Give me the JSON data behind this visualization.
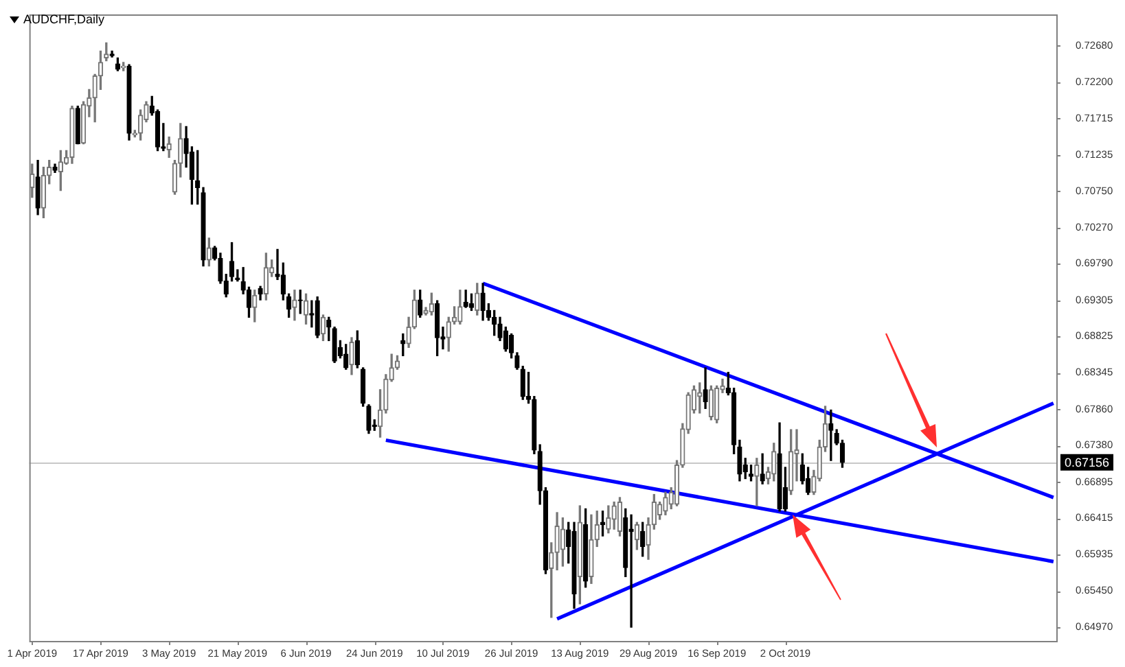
{
  "chart_data": {
    "type": "candlestick",
    "title": "AUDCHF,Daily",
    "categories": [
      "1 Apr 2019",
      null,
      null,
      null,
      null,
      null,
      null,
      null,
      null,
      null,
      null,
      null,
      "17 Apr 2019",
      null,
      null,
      null,
      null,
      null,
      null,
      null,
      null,
      null,
      null,
      null,
      "3 May 2019",
      null,
      null,
      null,
      null,
      null,
      null,
      null,
      null,
      null,
      null,
      null,
      "21 May 2019",
      null,
      null,
      null,
      null,
      null,
      null,
      null,
      null,
      null,
      null,
      null,
      "6 Jun 2019",
      null,
      null,
      null,
      null,
      null,
      null,
      null,
      null,
      null,
      null,
      null,
      "24 Jun 2019",
      null,
      null,
      null,
      null,
      null,
      null,
      null,
      null,
      null,
      null,
      null,
      "10 Jul 2019",
      null,
      null,
      null,
      null,
      null,
      null,
      null,
      null,
      null,
      null,
      null,
      "26 Jul 2019",
      null,
      null,
      null,
      null,
      null,
      null,
      null,
      null,
      null,
      null,
      null,
      "13 Aug 2019",
      null,
      null,
      null,
      null,
      null,
      null,
      null,
      null,
      null,
      null,
      null,
      "29 Aug 2019",
      null,
      null,
      null,
      null,
      null,
      null,
      null,
      null,
      null,
      null,
      null,
      "16 Sep 2019",
      null,
      null,
      null,
      null,
      null,
      null,
      null,
      null,
      null,
      null,
      null,
      "2 Oct 2019",
      null,
      null,
      null,
      null,
      null,
      null,
      null,
      null,
      null,
      null,
      null,
      null,
      null,
      null,
      null,
      null,
      null,
      null,
      null,
      null,
      null,
      null,
      null,
      null,
      null,
      null,
      null,
      null,
      null,
      null,
      null,
      null,
      null,
      null,
      null,
      null,
      null,
      null,
      null,
      null,
      null,
      null,
      null,
      null,
      null,
      null,
      null
    ],
    "ohlc": [
      [
        0.708,
        0.7111,
        0.7067,
        0.7098
      ],
      [
        0.7094,
        0.7116,
        0.7044,
        0.7053
      ],
      [
        0.7053,
        0.7107,
        0.704,
        0.7096
      ],
      [
        0.7096,
        0.7116,
        0.7085,
        0.7107
      ],
      [
        0.7107,
        0.7111,
        0.71,
        0.7103
      ],
      [
        0.7101,
        0.7129,
        0.7076,
        0.7114
      ],
      [
        0.7112,
        0.7129,
        0.7111,
        0.712
      ],
      [
        0.712,
        0.7188,
        0.7112,
        0.7185
      ],
      [
        0.7185,
        0.7188,
        0.7138,
        0.7138
      ],
      [
        0.7139,
        0.7194,
        0.7138,
        0.719
      ],
      [
        0.7188,
        0.721,
        0.7174,
        0.7199
      ],
      [
        0.7199,
        0.723,
        0.7167,
        0.7228
      ],
      [
        0.7228,
        0.7261,
        0.721,
        0.7246
      ],
      [
        0.7252,
        0.7272,
        0.7248,
        0.7257
      ],
      [
        0.7257,
        0.7261,
        0.7253,
        0.7255
      ],
      [
        0.7244,
        0.7252,
        0.7235,
        0.7237
      ],
      [
        0.7239,
        0.7246,
        0.7235,
        0.7241
      ],
      [
        0.7241,
        0.7243,
        0.7143,
        0.7152
      ],
      [
        0.715,
        0.7156,
        0.7147,
        0.7152
      ],
      [
        0.7152,
        0.7183,
        0.7143,
        0.7176
      ],
      [
        0.717,
        0.7194,
        0.7167,
        0.719
      ],
      [
        0.7188,
        0.7201,
        0.7176,
        0.7179
      ],
      [
        0.7181,
        0.7183,
        0.7129,
        0.7134
      ],
      [
        0.7134,
        0.7165,
        0.7129,
        0.7132
      ],
      [
        0.713,
        0.7147,
        0.712,
        0.7138
      ],
      [
        0.7074,
        0.7116,
        0.7071,
        0.7112
      ],
      [
        0.7112,
        0.7165,
        0.7094,
        0.7145
      ],
      [
        0.7145,
        0.7161,
        0.7107,
        0.7125
      ],
      [
        0.7127,
        0.7134,
        0.7058,
        0.7091
      ],
      [
        0.7089,
        0.7129,
        0.7058,
        0.708
      ],
      [
        0.7073,
        0.708,
        0.6976,
        0.6984
      ],
      [
        0.6984,
        0.7013,
        0.6976,
        0.7
      ],
      [
        0.7,
        0.7002,
        0.6984,
        0.6986
      ],
      [
        0.6986,
        0.6993,
        0.6953,
        0.6956
      ],
      [
        0.6956,
        0.6965,
        0.6935,
        0.6939
      ],
      [
        0.6982,
        0.7007,
        0.6956,
        0.6962
      ],
      [
        0.696,
        0.6971,
        0.6956,
        0.6958
      ],
      [
        0.6955,
        0.6974,
        0.6939,
        0.6944
      ],
      [
        0.6944,
        0.6948,
        0.6908,
        0.6921
      ],
      [
        0.6921,
        0.6944,
        0.6902,
        0.6937
      ],
      [
        0.6946,
        0.6949,
        0.6931,
        0.6939
      ],
      [
        0.6939,
        0.6993,
        0.6931,
        0.6974
      ],
      [
        0.6967,
        0.6984,
        0.6962,
        0.6974
      ],
      [
        0.6965,
        0.6998,
        0.6958,
        0.6962
      ],
      [
        0.6964,
        0.698,
        0.6931,
        0.6939
      ],
      [
        0.6935,
        0.6939,
        0.6908,
        0.6919
      ],
      [
        0.6921,
        0.6944,
        0.6904,
        0.6931
      ],
      [
        0.6931,
        0.6944,
        0.6913,
        0.693
      ],
      [
        0.6911,
        0.6939,
        0.6899,
        0.693
      ],
      [
        0.6913,
        0.693,
        0.6895,
        0.6911
      ],
      [
        0.693,
        0.6935,
        0.6881,
        0.6884
      ],
      [
        0.6886,
        0.6911,
        0.6877,
        0.6908
      ],
      [
        0.6904,
        0.6908,
        0.6877,
        0.6895
      ],
      [
        0.6893,
        0.6895,
        0.6848,
        0.685
      ],
      [
        0.6868,
        0.6877,
        0.6854,
        0.6857
      ],
      [
        0.6859,
        0.6872,
        0.6839,
        0.6841
      ],
      [
        0.6845,
        0.6881,
        0.6832,
        0.6875
      ],
      [
        0.6877,
        0.689,
        0.6841,
        0.6845
      ],
      [
        0.6839,
        0.6841,
        0.679,
        0.6794
      ],
      [
        0.679,
        0.6792,
        0.6754,
        0.6758
      ],
      [
        0.6765,
        0.6772,
        0.6758,
        0.6763
      ],
      [
        0.6763,
        0.6812,
        0.6749,
        0.6785
      ],
      [
        0.6785,
        0.6832,
        0.6781,
        0.6826
      ],
      [
        0.6825,
        0.6859,
        0.6823,
        0.6841
      ],
      [
        0.6841,
        0.6857,
        0.6839,
        0.685
      ],
      [
        0.6877,
        0.6886,
        0.6857,
        0.6873
      ],
      [
        0.6873,
        0.6908,
        0.6868,
        0.6895
      ],
      [
        0.6895,
        0.6944,
        0.6893,
        0.6931
      ],
      [
        0.6931,
        0.6944,
        0.6908,
        0.6911
      ],
      [
        0.6913,
        0.6921,
        0.6911,
        0.6917
      ],
      [
        0.6915,
        0.694,
        0.6911,
        0.6926
      ],
      [
        0.6926,
        0.693,
        0.6857,
        0.6881
      ],
      [
        0.6882,
        0.6895,
        0.6866,
        0.6879
      ],
      [
        0.6881,
        0.6908,
        0.6863,
        0.6902
      ],
      [
        0.6902,
        0.6922,
        0.6899,
        0.6908
      ],
      [
        0.6902,
        0.6944,
        0.6899,
        0.6922
      ],
      [
        0.6928,
        0.6944,
        0.6921,
        0.6922
      ],
      [
        0.6926,
        0.6939,
        0.6917,
        0.6921
      ],
      [
        0.6917,
        0.6953,
        0.6911,
        0.694
      ],
      [
        0.694,
        0.6953,
        0.6904,
        0.6917
      ],
      [
        0.6917,
        0.6926,
        0.6904,
        0.6908
      ],
      [
        0.6908,
        0.6917,
        0.6884,
        0.6899
      ],
      [
        0.6899,
        0.6908,
        0.6877,
        0.6881
      ],
      [
        0.689,
        0.6895,
        0.6863,
        0.6866
      ],
      [
        0.6884,
        0.6886,
        0.6854,
        0.6861
      ],
      [
        0.6857,
        0.6861,
        0.6839,
        0.6841
      ],
      [
        0.6839,
        0.6843,
        0.6799,
        0.6803
      ],
      [
        0.6803,
        0.6835,
        0.6794,
        0.6799
      ],
      [
        0.6799,
        0.6803,
        0.6727,
        0.6732
      ],
      [
        0.673,
        0.6739,
        0.666,
        0.6678
      ],
      [
        0.6678,
        0.6682,
        0.6568,
        0.6573
      ],
      [
        0.6575,
        0.6609,
        0.651,
        0.6596
      ],
      [
        0.6596,
        0.6649,
        0.6573,
        0.6631
      ],
      [
        0.66,
        0.6642,
        0.6578,
        0.6627
      ],
      [
        0.6626,
        0.6636,
        0.6582,
        0.6604
      ],
      [
        0.6624,
        0.6636,
        0.6522,
        0.6541
      ],
      [
        0.6564,
        0.6658,
        0.6528,
        0.6636
      ],
      [
        0.6633,
        0.6654,
        0.655,
        0.6558
      ],
      [
        0.6564,
        0.6646,
        0.6555,
        0.6613
      ],
      [
        0.6613,
        0.6651,
        0.6604,
        0.6633
      ],
      [
        0.6636,
        0.6651,
        0.6618,
        0.6633
      ],
      [
        0.6627,
        0.6658,
        0.6622,
        0.6642
      ],
      [
        0.664,
        0.6663,
        0.6627,
        0.6658
      ],
      [
        0.6624,
        0.6669,
        0.6618,
        0.6663
      ],
      [
        0.6642,
        0.6654,
        0.6564,
        0.6576
      ],
      [
        0.6627,
        0.6646,
        0.6497,
        0.6624
      ],
      [
        0.6613,
        0.6636,
        0.66,
        0.6633
      ],
      [
        0.6624,
        0.6636,
        0.6591,
        0.6604
      ],
      [
        0.6606,
        0.6642,
        0.6587,
        0.6633
      ],
      [
        0.6633,
        0.6673,
        0.6627,
        0.6663
      ],
      [
        0.6646,
        0.6663,
        0.664,
        0.666
      ],
      [
        0.6651,
        0.6676,
        0.6646,
        0.6669
      ],
      [
        0.666,
        0.6682,
        0.6654,
        0.6676
      ],
      [
        0.666,
        0.6718,
        0.6658,
        0.6712
      ],
      [
        0.6712,
        0.6767,
        0.6709,
        0.676
      ],
      [
        0.6759,
        0.6808,
        0.6754,
        0.6805
      ],
      [
        0.6785,
        0.6817,
        0.6781,
        0.6812
      ],
      [
        0.6803,
        0.6821,
        0.6781,
        0.6808
      ],
      [
        0.6812,
        0.6841,
        0.6787,
        0.6796
      ],
      [
        0.6776,
        0.6817,
        0.6772,
        0.6812
      ],
      [
        0.6772,
        0.6817,
        0.6768,
        0.6814
      ],
      [
        0.6812,
        0.6826,
        0.6808,
        0.6817
      ],
      [
        0.6814,
        0.6835,
        0.6805,
        0.6808
      ],
      [
        0.6808,
        0.6814,
        0.6727,
        0.6739
      ],
      [
        0.6736,
        0.6745,
        0.6691,
        0.67
      ],
      [
        0.6712,
        0.6721,
        0.6694,
        0.6703
      ],
      [
        0.67,
        0.6712,
        0.6691,
        0.6697
      ],
      [
        0.6697,
        0.6721,
        0.6658,
        0.6712
      ],
      [
        0.67,
        0.6727,
        0.6687,
        0.6691
      ],
      [
        0.6694,
        0.6709,
        0.6687,
        0.6703
      ],
      [
        0.67,
        0.6741,
        0.6691,
        0.673
      ],
      [
        0.6727,
        0.6768,
        0.6651,
        0.6654
      ],
      [
        0.6682,
        0.6709,
        0.6651,
        0.6654
      ],
      [
        0.6678,
        0.6759,
        0.6673,
        0.673
      ],
      [
        0.6727,
        0.6759,
        0.6691,
        0.6732
      ],
      [
        0.6712,
        0.6727,
        0.6687,
        0.6691
      ],
      [
        0.6694,
        0.6709,
        0.6673,
        0.6676
      ],
      [
        0.6676,
        0.6705,
        0.6673,
        0.6697
      ],
      [
        0.6694,
        0.6745,
        0.6691,
        0.6736
      ],
      [
        0.6736,
        0.679,
        0.673,
        0.6767
      ],
      [
        0.6767,
        0.6785,
        0.6718,
        0.6758
      ],
      [
        0.6754,
        0.6759,
        0.6739,
        0.6741
      ],
      [
        0.6741,
        0.6745,
        0.6709,
        0.67156
      ],
      null,
      null,
      null,
      null,
      null,
      null,
      null,
      null,
      null,
      null,
      null,
      null,
      null,
      null,
      null,
      null,
      null,
      null,
      null,
      null,
      null,
      null,
      null,
      null,
      null,
      null,
      null,
      null,
      null,
      null,
      null,
      null,
      null,
      null,
      null,
      null,
      null
    ],
    "series": [
      {
        "type": "line",
        "color": "#0000ff",
        "values": [
          null,
          null,
          null,
          null,
          null,
          null,
          null,
          null,
          null,
          null,
          null,
          null,
          null,
          null,
          null,
          null,
          null,
          null,
          null,
          null,
          null,
          null,
          null,
          null,
          null,
          null,
          null,
          null,
          null,
          null,
          null,
          null,
          null,
          null,
          null,
          null,
          null,
          null,
          null,
          null,
          null,
          null,
          null,
          null,
          null,
          null,
          null,
          null,
          null,
          null,
          null,
          null,
          null,
          null,
          null,
          null,
          null,
          null,
          null,
          null,
          null,
          null,
          null,
          null,
          null,
          null,
          null,
          null,
          null,
          null,
          null,
          null,
          null,
          null,
          null,
          null,
          null,
          null,
          null,
          0.6953,
          null,
          null,
          null,
          null,
          null,
          null,
          null,
          null,
          null,
          null,
          null,
          null,
          null,
          null,
          null,
          null,
          null,
          null,
          null,
          null,
          null,
          null,
          null,
          null,
          null,
          null,
          null,
          null,
          null,
          null,
          null,
          null,
          null,
          null,
          null,
          null,
          null,
          null,
          null,
          null,
          null,
          null,
          null,
          null,
          null,
          null,
          null,
          null,
          null,
          null,
          null,
          null,
          null,
          null,
          null,
          null,
          null,
          null,
          null,
          null,
          null,
          null,
          null,
          null,
          null,
          null,
          null,
          null,
          null,
          null,
          null,
          null,
          null,
          null,
          null,
          null,
          null,
          null,
          null,
          null,
          null,
          null,
          null,
          null,
          null,
          null,
          null,
          null,
          null,
          null,
          null,
          null,
          null,
          null,
          null,
          null,
          null,
          null,
          null,
          0.6669
        ]
      },
      {
        "type": "line",
        "color": "#0000ff",
        "values": [
          null,
          null,
          null,
          null,
          null,
          null,
          null,
          null,
          null,
          null,
          null,
          null,
          null,
          null,
          null,
          null,
          null,
          null,
          null,
          null,
          null,
          null,
          null,
          null,
          null,
          null,
          null,
          null,
          null,
          null,
          null,
          null,
          null,
          null,
          null,
          null,
          null,
          null,
          null,
          null,
          null,
          null,
          null,
          null,
          null,
          null,
          null,
          null,
          null,
          null,
          null,
          null,
          null,
          null,
          null,
          null,
          null,
          null,
          null,
          null,
          null,
          null,
          0.6745,
          null,
          null,
          null,
          null,
          null,
          null,
          null,
          null,
          null,
          null,
          null,
          null,
          null,
          null,
          null,
          null,
          null,
          null,
          null,
          null,
          null,
          null,
          null,
          null,
          null,
          null,
          null,
          null,
          null,
          null,
          null,
          null,
          null,
          null,
          null,
          null,
          null,
          null,
          null,
          null,
          null,
          null,
          null,
          null,
          null,
          null,
          null,
          null,
          null,
          null,
          null,
          null,
          null,
          null,
          null,
          null,
          null,
          null,
          null,
          null,
          null,
          null,
          null,
          null,
          null,
          null,
          null,
          null,
          null,
          null,
          null,
          null,
          null,
          null,
          null,
          null,
          null,
          null,
          null,
          null,
          null,
          null,
          null,
          null,
          null,
          null,
          null,
          null,
          null,
          null,
          null,
          null,
          null,
          null,
          null,
          null,
          null,
          null,
          null,
          null,
          null,
          null,
          null,
          null,
          null,
          null,
          null,
          null,
          null,
          null,
          null,
          null,
          null,
          null,
          null,
          null,
          0.6584
        ]
      },
      {
        "type": "line",
        "color": "#0000ff",
        "values": [
          null,
          null,
          null,
          null,
          null,
          null,
          null,
          null,
          null,
          null,
          null,
          null,
          null,
          null,
          null,
          null,
          null,
          null,
          null,
          null,
          null,
          null,
          null,
          null,
          null,
          null,
          null,
          null,
          null,
          null,
          null,
          null,
          null,
          null,
          null,
          null,
          null,
          null,
          null,
          null,
          null,
          null,
          null,
          null,
          null,
          null,
          null,
          null,
          null,
          null,
          null,
          null,
          null,
          null,
          null,
          null,
          null,
          null,
          null,
          null,
          null,
          null,
          null,
          null,
          null,
          null,
          null,
          null,
          null,
          null,
          null,
          null,
          null,
          null,
          null,
          null,
          null,
          null,
          null,
          null,
          null,
          null,
          null,
          null,
          null,
          null,
          null,
          null,
          null,
          null,
          null,
          null,
          0.6508,
          null,
          null,
          null,
          null,
          null,
          null,
          null,
          null,
          null,
          null,
          null,
          null,
          null,
          null,
          null,
          null,
          null,
          null,
          null,
          null,
          null,
          null,
          null,
          null,
          null,
          null,
          null,
          null,
          null,
          null,
          null,
          null,
          null,
          null,
          null,
          null,
          null,
          null,
          null,
          null,
          null,
          null,
          null,
          null,
          null,
          null,
          null,
          null,
          null,
          null,
          null,
          null,
          null,
          null,
          null,
          null,
          null,
          null,
          null,
          null,
          null,
          null,
          null,
          null,
          null,
          null,
          null,
          null,
          null,
          null,
          null,
          null,
          null,
          null,
          null,
          null,
          null,
          null,
          null,
          null,
          null,
          null,
          null,
          null,
          null,
          null,
          0.6794
        ]
      }
    ],
    "ylim": [
      0.64788,
      0.73096
    ],
    "yticks": [
      {
        "value": 0.7268,
        "label": "0.72680"
      },
      {
        "value": 0.722,
        "label": "0.72200"
      },
      {
        "value": 0.71715,
        "label": "0.71715"
      },
      {
        "value": 0.71235,
        "label": "0.71235"
      },
      {
        "value": 0.7075,
        "label": "0.70750"
      },
      {
        "value": 0.7027,
        "label": "0.70270"
      },
      {
        "value": 0.6979,
        "label": "0.69790"
      },
      {
        "value": 0.69305,
        "label": "0.69305"
      },
      {
        "value": 0.68825,
        "label": "0.68825"
      },
      {
        "value": 0.68345,
        "label": "0.68345"
      },
      {
        "value": 0.6786,
        "label": "0.67860"
      },
      {
        "value": 0.6738,
        "label": "0.67380"
      },
      {
        "value": 0.66895,
        "label": "0.66895"
      },
      {
        "value": 0.66415,
        "label": "0.66415"
      },
      {
        "value": 0.65935,
        "label": "0.65935"
      },
      {
        "value": 0.6545,
        "label": "0.65450"
      },
      {
        "value": 0.6497,
        "label": "0.64970"
      }
    ],
    "ref_lines": [
      {
        "axis": "y",
        "value": 0.67156,
        "label": "0.67156",
        "color": "#c8c8c8"
      }
    ]
  }
}
